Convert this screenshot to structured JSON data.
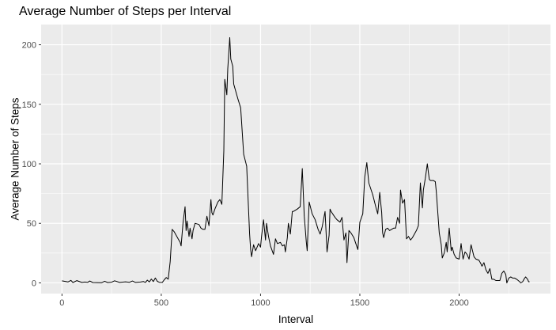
{
  "chart_data": {
    "type": "line",
    "title": "Average Number of Steps per Interval",
    "xlabel": "Interval",
    "ylabel": "Average Number of Steps",
    "xlim": [
      -105,
      2460
    ],
    "ylim": [
      -9,
      217
    ],
    "x_ticks": [
      0,
      500,
      1000,
      1500,
      2000
    ],
    "y_ticks": [
      0,
      50,
      100,
      150,
      200
    ],
    "grid": true,
    "colors": {
      "panel": "#ebebeb",
      "grid_major": "#ffffff",
      "line": "#000000",
      "tick_text": "#4d4d4d"
    },
    "series": [
      {
        "points": [
          [
            0,
            1.7
          ],
          [
            30,
            0.8
          ],
          [
            45,
            2.1
          ],
          [
            55,
            0.3
          ],
          [
            75,
            1.9
          ],
          [
            100,
            0.4
          ],
          [
            115,
            0.7
          ],
          [
            130,
            0.5
          ],
          [
            140,
            1.6
          ],
          [
            155,
            0.3
          ],
          [
            200,
            0.2
          ],
          [
            215,
            1.4
          ],
          [
            230,
            0.3
          ],
          [
            250,
            0.6
          ],
          [
            265,
            1.8
          ],
          [
            290,
            0.4
          ],
          [
            320,
            0.9
          ],
          [
            340,
            0.5
          ],
          [
            355,
            1.6
          ],
          [
            370,
            0.4
          ],
          [
            395,
            0.7
          ],
          [
            410,
            1.2
          ],
          [
            420,
            0.4
          ],
          [
            430,
            2.3
          ],
          [
            440,
            0.8
          ],
          [
            450,
            3.2
          ],
          [
            460,
            1.1
          ],
          [
            470,
            4.1
          ],
          [
            480,
            1.3
          ],
          [
            490,
            0.5
          ],
          [
            505,
            0.4
          ],
          [
            515,
            2.6
          ],
          [
            525,
            4.5
          ],
          [
            535,
            3.1
          ],
          [
            545,
            18
          ],
          [
            555,
            45
          ],
          [
            565,
            43
          ],
          [
            575,
            40
          ],
          [
            585,
            37
          ],
          [
            595,
            34
          ],
          [
            600,
            31
          ],
          [
            610,
            51
          ],
          [
            620,
            64
          ],
          [
            625,
            44
          ],
          [
            630,
            52
          ],
          [
            640,
            39
          ],
          [
            645,
            46
          ],
          [
            655,
            37
          ],
          [
            660,
            44
          ],
          [
            670,
            50
          ],
          [
            690,
            49
          ],
          [
            700,
            46
          ],
          [
            710,
            45
          ],
          [
            720,
            45
          ],
          [
            730,
            56
          ],
          [
            740,
            48
          ],
          [
            750,
            70
          ],
          [
            755,
            59
          ],
          [
            760,
            57
          ],
          [
            770,
            62
          ],
          [
            785,
            68
          ],
          [
            795,
            70
          ],
          [
            805,
            66
          ],
          [
            815,
            111
          ],
          [
            820,
            171
          ],
          [
            830,
            158
          ],
          [
            835,
            180
          ],
          [
            845,
            206
          ],
          [
            850,
            188
          ],
          [
            860,
            182
          ],
          [
            865,
            167
          ],
          [
            885,
            155
          ],
          [
            900,
            147
          ],
          [
            915,
            108
          ],
          [
            930,
            98
          ],
          [
            945,
            41
          ],
          [
            950,
            28
          ],
          [
            955,
            22
          ],
          [
            965,
            32
          ],
          [
            975,
            27
          ],
          [
            990,
            33
          ],
          [
            1000,
            30
          ],
          [
            1005,
            39
          ],
          [
            1015,
            53
          ],
          [
            1025,
            36
          ],
          [
            1030,
            50
          ],
          [
            1040,
            39
          ],
          [
            1050,
            31
          ],
          [
            1065,
            24
          ],
          [
            1075,
            37
          ],
          [
            1085,
            33
          ],
          [
            1100,
            34
          ],
          [
            1110,
            31
          ],
          [
            1120,
            32
          ],
          [
            1125,
            26
          ],
          [
            1135,
            38
          ],
          [
            1140,
            50
          ],
          [
            1150,
            41
          ],
          [
            1160,
            60
          ],
          [
            1165,
            60
          ],
          [
            1175,
            61
          ],
          [
            1185,
            62
          ],
          [
            1200,
            64
          ],
          [
            1210,
            96
          ],
          [
            1220,
            56
          ],
          [
            1230,
            35
          ],
          [
            1235,
            27
          ],
          [
            1245,
            68
          ],
          [
            1260,
            58
          ],
          [
            1275,
            53
          ],
          [
            1290,
            45
          ],
          [
            1300,
            41
          ],
          [
            1310,
            47
          ],
          [
            1325,
            60
          ],
          [
            1335,
            26
          ],
          [
            1345,
            40
          ],
          [
            1350,
            62
          ],
          [
            1355,
            60
          ],
          [
            1375,
            55
          ],
          [
            1385,
            53
          ],
          [
            1400,
            51
          ],
          [
            1410,
            55
          ],
          [
            1420,
            36
          ],
          [
            1430,
            42
          ],
          [
            1435,
            17
          ],
          [
            1445,
            44
          ],
          [
            1455,
            42
          ],
          [
            1470,
            38
          ],
          [
            1480,
            33
          ],
          [
            1490,
            28
          ],
          [
            1500,
            51
          ],
          [
            1515,
            58
          ],
          [
            1525,
            89
          ],
          [
            1535,
            101
          ],
          [
            1545,
            84
          ],
          [
            1565,
            74
          ],
          [
            1580,
            64
          ],
          [
            1590,
            58
          ],
          [
            1600,
            76
          ],
          [
            1610,
            59
          ],
          [
            1615,
            42
          ],
          [
            1620,
            38
          ],
          [
            1630,
            45
          ],
          [
            1640,
            46
          ],
          [
            1650,
            44
          ],
          [
            1660,
            45
          ],
          [
            1670,
            46
          ],
          [
            1680,
            46
          ],
          [
            1690,
            55
          ],
          [
            1700,
            50
          ],
          [
            1705,
            78
          ],
          [
            1715,
            67
          ],
          [
            1725,
            70
          ],
          [
            1735,
            37
          ],
          [
            1745,
            39
          ],
          [
            1755,
            36
          ],
          [
            1765,
            38
          ],
          [
            1775,
            41
          ],
          [
            1785,
            44
          ],
          [
            1795,
            48
          ],
          [
            1805,
            84
          ],
          [
            1815,
            63
          ],
          [
            1820,
            78
          ],
          [
            1830,
            88
          ],
          [
            1840,
            100
          ],
          [
            1845,
            93
          ],
          [
            1850,
            87
          ],
          [
            1855,
            86
          ],
          [
            1870,
            86
          ],
          [
            1880,
            85
          ],
          [
            1885,
            77
          ],
          [
            1900,
            42
          ],
          [
            1910,
            32
          ],
          [
            1915,
            21
          ],
          [
            1925,
            25
          ],
          [
            1935,
            34
          ],
          [
            1940,
            26
          ],
          [
            1950,
            46
          ],
          [
            1960,
            27
          ],
          [
            1965,
            30
          ],
          [
            1975,
            24
          ],
          [
            1985,
            21
          ],
          [
            2000,
            20
          ],
          [
            2010,
            33
          ],
          [
            2020,
            20
          ],
          [
            2030,
            26
          ],
          [
            2040,
            24
          ],
          [
            2050,
            20
          ],
          [
            2060,
            32
          ],
          [
            2075,
            22
          ],
          [
            2085,
            20
          ],
          [
            2100,
            19
          ],
          [
            2110,
            16
          ],
          [
            2115,
            14
          ],
          [
            2125,
            17
          ],
          [
            2135,
            11
          ],
          [
            2145,
            8
          ],
          [
            2155,
            12
          ],
          [
            2165,
            3
          ],
          [
            2175,
            3
          ],
          [
            2185,
            2
          ],
          [
            2195,
            2
          ],
          [
            2205,
            2
          ],
          [
            2215,
            8
          ],
          [
            2225,
            10
          ],
          [
            2235,
            7
          ],
          [
            2240,
            0
          ],
          [
            2250,
            4
          ],
          [
            2260,
            5
          ],
          [
            2270,
            4
          ],
          [
            2280,
            4
          ],
          [
            2290,
            3
          ],
          [
            2305,
            1
          ],
          [
            2310,
            0
          ],
          [
            2320,
            1
          ],
          [
            2330,
            4
          ],
          [
            2335,
            5
          ],
          [
            2345,
            3
          ],
          [
            2350,
            1
          ],
          [
            2355,
            1
          ]
        ]
      }
    ]
  }
}
